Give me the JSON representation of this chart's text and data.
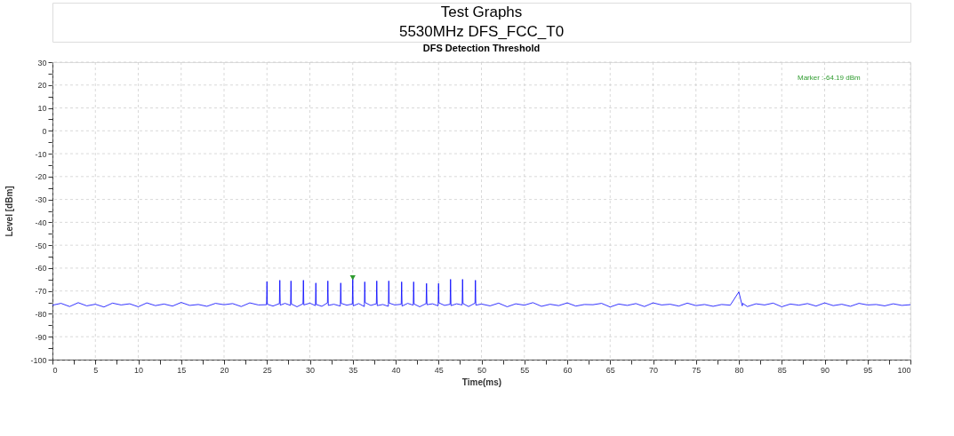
{
  "chart_data": {
    "type": "line",
    "title": "DFS Detection Threshold",
    "xlabel": "Time(ms)",
    "ylabel": "Level [dBm]",
    "annotations": [
      "Test Graphs",
      "5530MHz DFS_FCC_T0",
      "Marker :-64.19 dBm"
    ],
    "xlim": [
      0,
      100
    ],
    "ylim": [
      -100,
      30
    ],
    "xticks": [
      0,
      {
        "value": 2.5,
        "label": null
      },
      5,
      {
        "value": 7.5,
        "label": null
      },
      10,
      {
        "value": 12.5,
        "label": null
      },
      15,
      {
        "value": 17.5,
        "label": null
      },
      20,
      {
        "value": 22.5,
        "label": null
      },
      25,
      {
        "value": 27.5,
        "label": null
      },
      30,
      {
        "value": 32.5,
        "label": null
      },
      35,
      {
        "value": 37.5,
        "label": null
      },
      40,
      {
        "value": 42.5,
        "label": null
      },
      45,
      {
        "value": 47.5,
        "label": null
      },
      50,
      {
        "value": 52.5,
        "label": null
      },
      55,
      {
        "value": 57.5,
        "label": null
      },
      60,
      {
        "value": 62.5,
        "label": null
      },
      65,
      {
        "value": 67.5,
        "label": null
      },
      70,
      {
        "value": 72.5,
        "label": null
      },
      75,
      {
        "value": 77.5,
        "label": null
      },
      80,
      {
        "value": 82.5,
        "label": null
      },
      85,
      {
        "value": 87.5,
        "label": null
      },
      90,
      {
        "value": 92.5,
        "label": null
      },
      95,
      {
        "value": 97.5,
        "label": null
      },
      100
    ],
    "yticks": [
      -100,
      {
        "value": -95,
        "label": null
      },
      -90,
      {
        "value": -85,
        "label": null
      },
      -80,
      {
        "value": -75,
        "label": null
      },
      -70,
      {
        "value": -65,
        "label": null
      },
      -60,
      {
        "value": -55,
        "label": null
      },
      -50,
      {
        "value": -45,
        "label": null
      },
      -40,
      {
        "value": -35,
        "label": null
      },
      -30,
      {
        "value": -25,
        "label": null
      },
      -20,
      {
        "value": -15,
        "label": null
      },
      -10,
      {
        "value": -5,
        "label": null
      },
      0,
      {
        "value": 5,
        "label": null
      },
      10,
      {
        "value": 15,
        "label": null
      },
      20,
      {
        "value": 25,
        "label": null
      },
      30
    ],
    "grid": true,
    "line_style": "solid",
    "series": [
      {
        "type": "line",
        "color": "#0000ff",
        "x": [
          0,
          1,
          2,
          3,
          4,
          5,
          6,
          7,
          8,
          9,
          10,
          11,
          12,
          13,
          14,
          15,
          16,
          17,
          18,
          19,
          20,
          21,
          22,
          23,
          24,
          24.95,
          25,
          25.05,
          25.7,
          26.45,
          26.5,
          26.55,
          27.1,
          27.75,
          27.8,
          27.85,
          28.5,
          29.2,
          29.25,
          29.3,
          30,
          30.65,
          30.7,
          30.75,
          31.4,
          32.05,
          32.1,
          32.15,
          32.8,
          33.55,
          33.6,
          33.65,
          34.3,
          34.95,
          35,
          35.05,
          35.7,
          36.35,
          36.4,
          36.45,
          37.1,
          37.75,
          37.8,
          37.85,
          38.5,
          39.15,
          39.2,
          39.25,
          39.9,
          40.65,
          40.7,
          40.75,
          41.4,
          42.05,
          42.1,
          42.15,
          42.8,
          43.55,
          43.6,
          43.65,
          44.3,
          44.95,
          45,
          45.05,
          45.7,
          46.35,
          46.4,
          46.45,
          47.1,
          47.75,
          47.8,
          47.85,
          48.5,
          49.25,
          49.3,
          49.35,
          50,
          51,
          52,
          53,
          54,
          55,
          56,
          57,
          58,
          59,
          60,
          61,
          62,
          63,
          64,
          65,
          66,
          67,
          68,
          69,
          70,
          71,
          72,
          73,
          74,
          75,
          76,
          77,
          78,
          79,
          80,
          80.35,
          80.4,
          80.45,
          81,
          82,
          83,
          84,
          85,
          86,
          87,
          88,
          89,
          90,
          91,
          92,
          93,
          94,
          95,
          96,
          97,
          98,
          99,
          100
        ],
        "values": [
          -76.2,
          -75.4,
          -76.8,
          -75.1,
          -76.5,
          -75.8,
          -77.0,
          -75.3,
          -76.1,
          -75.6,
          -76.9,
          -75.2,
          -76.4,
          -75.7,
          -76.6,
          -75.0,
          -76.3,
          -75.9,
          -76.7,
          -75.4,
          -76.0,
          -75.5,
          -76.8,
          -75.2,
          -76.1,
          -76.0,
          -65.9,
          -75.8,
          -76.6,
          -75.5,
          -65.3,
          -76.2,
          -75.4,
          -76.3,
          -65.6,
          -75.7,
          -76.9,
          -75.6,
          -65.3,
          -76.1,
          -75.3,
          -76.4,
          -66.5,
          -75.9,
          -76.7,
          -75.2,
          -65.6,
          -76.3,
          -75.8,
          -76.6,
          -66.5,
          -75.4,
          -76.2,
          -75.7,
          -64.19,
          -76.5,
          -75.5,
          -76.8,
          -66.0,
          -75.1,
          -76.3,
          -75.6,
          -65.6,
          -76.4,
          -75.9,
          -76.7,
          -65.6,
          -75.3,
          -76.1,
          -75.8,
          -66.0,
          -76.6,
          -75.4,
          -76.2,
          -66.0,
          -75.7,
          -76.9,
          -75.5,
          -66.7,
          -76.0,
          -75.6,
          -76.5,
          -66.7,
          -75.2,
          -76.3,
          -75.8,
          -64.9,
          -76.4,
          -75.6,
          -76.1,
          -64.9,
          -75.5,
          -76.8,
          -75.3,
          -65.3,
          -76.2,
          -75.7,
          -76.5,
          -75.3,
          -76.9,
          -75.6,
          -76.2,
          -75.1,
          -76.7,
          -75.8,
          -76.4,
          -75.2,
          -76.6,
          -75.9,
          -76.0,
          -75.4,
          -77.0,
          -75.7,
          -76.3,
          -75.5,
          -76.8,
          -75.2,
          -76.1,
          -75.8,
          -76.6,
          -75.3,
          -76.4,
          -75.9,
          -76.7,
          -75.9,
          -76.2,
          -70.4,
          -75.8,
          -76.5,
          -75.4,
          -76.8,
          -75.6,
          -76.1,
          -75.3,
          -76.9,
          -75.7,
          -76.2,
          -75.5,
          -76.6,
          -75.2,
          -76.4,
          -75.8,
          -76.7,
          -75.4,
          -76.1,
          -75.9,
          -76.5,
          -75.6,
          -76.3,
          -76.0
        ]
      },
      {
        "type": "scatter",
        "color": "#2e9b2e",
        "marker": "triangle",
        "x": [
          35
        ],
        "values": [
          -64.19
        ]
      }
    ]
  }
}
